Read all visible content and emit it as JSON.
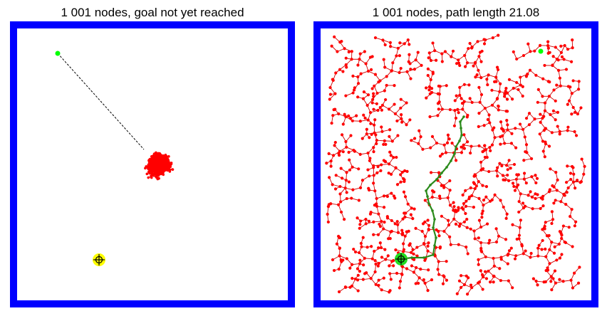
{
  "panels": [
    {
      "id": "left",
      "title": "1 001 nodes,  goal not yet reached",
      "node_count": 1001,
      "goal_reached": false
    },
    {
      "id": "right",
      "title": "1 001 nodes,  path length 21.08",
      "node_count": 1001,
      "goal_reached": true,
      "path_length": 21.08
    }
  ],
  "colors": {
    "border": "#0000ff",
    "tree": "#ff0000",
    "node_edge": "#cc0000",
    "path": "#2a8a1a",
    "goal": "#00ff00",
    "start": "#ffff00",
    "start_green": "#22dd22",
    "connector": "#000000"
  },
  "icons": {
    "start_marker": "crosshair-target-icon",
    "goal_marker": "goal-dot-icon"
  }
}
